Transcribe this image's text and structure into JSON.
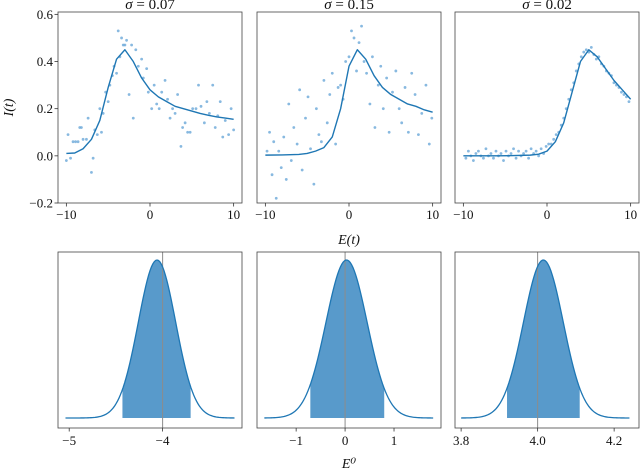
{
  "chart_data": [
    {
      "type": "scatter",
      "title": "σ = 0.07",
      "sigma_symbol": "σ",
      "sigma_value": "0.07",
      "xlim": [
        -11,
        11
      ],
      "ylim": [
        -0.2,
        0.61
      ],
      "xticks": [
        -10,
        0,
        10
      ],
      "xtick_labels": [
        "−10",
        "0",
        "10"
      ],
      "yticks": [
        -0.2,
        0,
        0.2,
        0.4,
        0.6
      ],
      "ytick_labels": [
        "−0.2",
        "0.0",
        "0.2",
        "0.4",
        "0.6"
      ],
      "ylabel": "I(t)",
      "curve": {
        "x": [
          -10,
          -9,
          -8,
          -7,
          -6,
          -5,
          -4,
          -3,
          -2,
          -1,
          0,
          1,
          2,
          3,
          4,
          5,
          6,
          7,
          8,
          9,
          10
        ],
        "y": [
          0.01,
          0.012,
          0.03,
          0.07,
          0.15,
          0.29,
          0.41,
          0.45,
          0.4,
          0.33,
          0.28,
          0.25,
          0.23,
          0.21,
          0.2,
          0.19,
          0.18,
          0.172,
          0.165,
          0.16,
          0.155
        ]
      },
      "points": {
        "x": [
          -10,
          -9.8,
          -9.5,
          -9.2,
          -8.9,
          -8.6,
          -8.4,
          -8.2,
          -8,
          -7.6,
          -7.4,
          -7,
          -6.8,
          -6.6,
          -6.3,
          -6,
          -5.8,
          -5.6,
          -5.3,
          -5,
          -4.8,
          -4.5,
          -4.3,
          -4,
          -3.8,
          -3.6,
          -3.4,
          -3.2,
          -3,
          -2.8,
          -2.5,
          -2.2,
          -2,
          -1.7,
          -1.4,
          -1,
          -0.8,
          -0.4,
          -0.2,
          0.2,
          0.5,
          0.8,
          1.1,
          1.4,
          1.8,
          2.1,
          2.4,
          2.7,
          3,
          3.3,
          3.7,
          3.9,
          4.2,
          4.5,
          4.8,
          5.1,
          5.5,
          5.8,
          6.1,
          6.5,
          6.8,
          7.1,
          7.5,
          7.8,
          8.1,
          8.4,
          8.7,
          9,
          9.4,
          9.7,
          10
        ],
        "y": [
          -0.02,
          0.09,
          -0.01,
          0.06,
          0.06,
          0.06,
          0.12,
          0.12,
          0.07,
          0.07,
          0.16,
          -0.07,
          -0.01,
          0.11,
          0.09,
          0.2,
          0.1,
          0.18,
          0.27,
          0.23,
          0.3,
          0.34,
          0.38,
          0.35,
          0.53,
          0.42,
          0.5,
          0.47,
          0.47,
          0.49,
          0.26,
          0.47,
          0.16,
          0.45,
          0.38,
          0.41,
          0.33,
          0.37,
          0.27,
          0.2,
          0.3,
          0.22,
          0.2,
          0.27,
          0.32,
          0.24,
          0.16,
          0.2,
          0.18,
          0.26,
          0.04,
          0.12,
          0.14,
          0.1,
          0.1,
          0.2,
          0.2,
          0.3,
          0.21,
          0.14,
          0.23,
          0.18,
          0.3,
          0.12,
          0.17,
          0.23,
          0.08,
          0.15,
          0.09,
          0.2,
          0.11
        ]
      }
    },
    {
      "type": "scatter",
      "title": "σ = 0.15",
      "sigma_symbol": "σ",
      "sigma_value": "0.15",
      "xlim": [
        -11,
        11
      ],
      "ylim": [
        -0.2,
        0.61
      ],
      "xticks": [
        -10,
        0,
        10
      ],
      "xtick_labels": [
        "−10",
        "0",
        "10"
      ],
      "curve": {
        "x": [
          -10,
          -8,
          -6,
          -5,
          -4,
          -3,
          -2,
          -1,
          0,
          1,
          2,
          3,
          4,
          5,
          6,
          7,
          8,
          9,
          10
        ],
        "y": [
          0.003,
          0.004,
          0.006,
          0.01,
          0.02,
          0.035,
          0.08,
          0.2,
          0.38,
          0.45,
          0.41,
          0.34,
          0.29,
          0.26,
          0.24,
          0.22,
          0.21,
          0.195,
          0.185
        ]
      },
      "points": {
        "x": [
          -9.8,
          -9.5,
          -9.2,
          -9,
          -8.7,
          -8.4,
          -8.1,
          -7.8,
          -7.5,
          -7.2,
          -6.9,
          -6.6,
          -6.2,
          -5.9,
          -5.6,
          -5.2,
          -4.9,
          -4.6,
          -4.2,
          -3.9,
          -3.6,
          -3.3,
          -3,
          -2.6,
          -2.3,
          -2,
          -1.6,
          -1.3,
          -1,
          -0.7,
          -0.4,
          0,
          0.3,
          0.6,
          0.9,
          1.2,
          1.5,
          1.8,
          2.1,
          2.5,
          2.8,
          3.1,
          3.5,
          3.8,
          4.1,
          4.5,
          4.8,
          5.2,
          5.6,
          6,
          6.3,
          6.7,
          7.1,
          7.5,
          7.9,
          8.3,
          8.7,
          9.2,
          9.6,
          9.9
        ],
        "y": [
          0.02,
          0.1,
          -0.08,
          0.06,
          -0.18,
          0.02,
          -0.05,
          0.08,
          -0.1,
          0.22,
          -0.02,
          0.12,
          0.05,
          0.28,
          -0.06,
          0.16,
          0.25,
          0.03,
          -0.12,
          0.2,
          0.09,
          0.06,
          0.32,
          0.14,
          0.26,
          0.35,
          0.05,
          0.29,
          0.3,
          0.24,
          0.4,
          0.42,
          0.53,
          0.5,
          0.36,
          0.48,
          0.55,
          0.4,
          0.35,
          0.22,
          0.42,
          0.12,
          0.3,
          0.38,
          0.2,
          0.33,
          0.1,
          0.27,
          0.36,
          0.2,
          0.14,
          0.29,
          0.1,
          0.35,
          0.26,
          0.09,
          0.18,
          0.3,
          0.05,
          0.16
        ]
      }
    },
    {
      "type": "scatter",
      "title": "σ = 0.02",
      "sigma_symbol": "σ",
      "sigma_value": "0.02",
      "xlim": [
        -11,
        11
      ],
      "ylim": [
        -0.2,
        0.61
      ],
      "xticks": [
        -10,
        0,
        10
      ],
      "xtick_labels": [
        "−10",
        "0",
        "10"
      ],
      "xlabel": "E(t)",
      "curve": {
        "x": [
          -10,
          -8,
          -6,
          -4,
          -2,
          -1,
          0,
          1,
          2,
          3,
          4,
          5,
          6,
          7,
          8,
          9,
          10
        ],
        "y": [
          0,
          0,
          0,
          0.001,
          0.003,
          0.007,
          0.02,
          0.06,
          0.14,
          0.27,
          0.4,
          0.45,
          0.42,
          0.37,
          0.32,
          0.28,
          0.24
        ]
      },
      "points": {
        "x": [
          -9.7,
          -9.4,
          -9.1,
          -8.8,
          -8.5,
          -8.2,
          -7.9,
          -7.6,
          -7.3,
          -7,
          -6.7,
          -6.4,
          -6.1,
          -5.8,
          -5.5,
          -5.2,
          -4.9,
          -4.6,
          -4.3,
          -4,
          -3.7,
          -3.4,
          -3.1,
          -2.8,
          -2.5,
          -2.2,
          -1.9,
          -1.6,
          -1.3,
          -1,
          -0.7,
          -0.4,
          -0.1,
          0.2,
          0.5,
          0.8,
          1.1,
          1.4,
          1.7,
          2,
          2.3,
          2.6,
          2.9,
          3.2,
          3.5,
          3.8,
          4.1,
          4.4,
          4.7,
          5,
          5.3,
          5.6,
          5.9,
          6.2,
          6.5,
          6.8,
          7.1,
          7.4,
          7.7,
          8,
          8.3,
          8.6,
          8.9,
          9.2,
          9.5,
          9.8
        ],
        "y": [
          -0.01,
          0.02,
          0.0,
          -0.02,
          0.01,
          0.02,
          0.0,
          -0.01,
          0.03,
          0.0,
          0.01,
          -0.01,
          0.02,
          0.0,
          0.01,
          -0.02,
          0.02,
          0.0,
          0.01,
          0.03,
          -0.01,
          0.02,
          0.0,
          0.01,
          0.02,
          -0.01,
          0.03,
          0.01,
          0.02,
          0.0,
          0.03,
          0.01,
          0.04,
          0.05,
          0.05,
          0.07,
          0.09,
          0.1,
          0.13,
          0.16,
          0.2,
          0.24,
          0.28,
          0.31,
          0.36,
          0.39,
          0.42,
          0.44,
          0.45,
          0.44,
          0.46,
          0.43,
          0.41,
          0.42,
          0.39,
          0.38,
          0.36,
          0.35,
          0.34,
          0.31,
          0.3,
          0.29,
          0.27,
          0.26,
          0.25,
          0.23
        ]
      }
    },
    {
      "type": "area",
      "xlim": [
        -5.12,
        -3.15
      ],
      "xticks": [
        -5,
        -4
      ],
      "xtick_labels": [
        "−5",
        "−4"
      ],
      "mean": -4.06,
      "sd": 0.2,
      "curve_range": [
        -5.04,
        -3.23
      ],
      "interval": [
        -4.43,
        -3.7
      ],
      "reference_line": -4
    },
    {
      "type": "area",
      "xlim": [
        -1.8,
        1.96
      ],
      "xticks": [
        -1,
        0,
        1
      ],
      "xtick_labels": [
        "−1",
        "0",
        "1"
      ],
      "mean": 0.03,
      "sd": 0.42,
      "curve_range": [
        -1.65,
        1.8
      ],
      "interval": [
        -0.71,
        0.8
      ],
      "reference_line": 0,
      "xlabel": "E⁰"
    },
    {
      "type": "area",
      "xlim": [
        3.784,
        4.265
      ],
      "xticks": [
        3.8,
        4.0,
        4.2
      ],
      "xtick_labels": [
        "3.8",
        "4.0",
        "4.2"
      ],
      "mean": 4.015,
      "sd": 0.052,
      "curve_range": [
        3.8,
        4.24
      ],
      "interval": [
        3.92,
        4.11
      ],
      "reference_line": 4.0
    }
  ],
  "colors": {
    "line": "#1f77b4",
    "points": "#6aa8d8",
    "fill": "#4f95c8",
    "reference": "#8c8c8c"
  }
}
